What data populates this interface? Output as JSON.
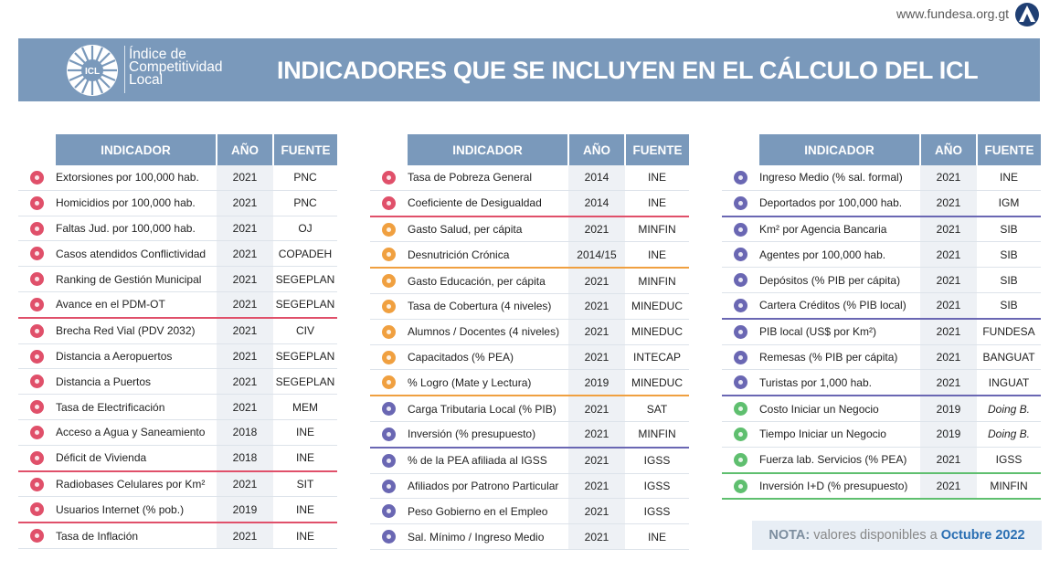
{
  "header": {
    "site_url": "www.fundesa.org.gt",
    "logo_text": "ICL",
    "brand_line1": "Índice de",
    "brand_line2": "Competitividad",
    "brand_line3": "Local",
    "title": "INDICADORES QUE SE INCLUYEN EN EL CÁLCULO DEL ICL"
  },
  "columns": {
    "indicator": "INDICADOR",
    "year": "AÑO",
    "source": "FUENTE"
  },
  "colors": {
    "banner": "#7a99bb",
    "crimson": "#e0506a",
    "orange": "#f0a040",
    "purple": "#6a67b3",
    "green": "#5fbf6f",
    "nota_date": "#2a6fb3"
  },
  "tables": [
    {
      "rows": [
        {
          "icon": "shield-icon",
          "color": "#e0506a",
          "indicator": "Extorsiones por 100,000 hab.",
          "year": "2021",
          "source": "PNC"
        },
        {
          "icon": "shield-icon",
          "color": "#e0506a",
          "indicator": "Homicidios por 100,000 hab.",
          "year": "2021",
          "source": "PNC"
        },
        {
          "icon": "shield-icon",
          "color": "#e0506a",
          "indicator": "Faltas Jud. por 100,000 hab.",
          "year": "2021",
          "source": "OJ"
        },
        {
          "icon": "institution-icon",
          "color": "#e0506a",
          "indicator": "Casos atendidos Conflictividad",
          "year": "2021",
          "source": "COPADEH"
        },
        {
          "icon": "institution-icon",
          "color": "#e0506a",
          "indicator": "Ranking de Gestión Municipal",
          "year": "2021",
          "source": "SEGEPLAN"
        },
        {
          "icon": "institution-icon",
          "color": "#e0506a",
          "indicator": "Avance en el PDM-OT",
          "year": "2021",
          "source": "SEGEPLAN",
          "sep": "#e0506a"
        },
        {
          "icon": "road-icon",
          "color": "#e0506a",
          "indicator": "Brecha Red Vial (PDV 2032)",
          "year": "2021",
          "source": "CIV"
        },
        {
          "icon": "road-icon",
          "color": "#e0506a",
          "indicator": "Distancia a Aeropuertos",
          "year": "2021",
          "source": "SEGEPLAN"
        },
        {
          "icon": "road-icon",
          "color": "#e0506a",
          "indicator": "Distancia a Puertos",
          "year": "2021",
          "source": "SEGEPLAN"
        },
        {
          "icon": "building-icon",
          "color": "#e0506a",
          "indicator": "Tasa de Electrificación",
          "year": "2021",
          "source": "MEM"
        },
        {
          "icon": "building-icon",
          "color": "#e0506a",
          "indicator": "Acceso a Agua y Saneamiento",
          "year": "2018",
          "source": "INE"
        },
        {
          "icon": "building-icon",
          "color": "#e0506a",
          "indicator": "Déficit de Vivienda",
          "year": "2018",
          "source": "INE",
          "sep": "#e0506a"
        },
        {
          "icon": "antenna-icon",
          "color": "#e0506a",
          "indicator": "Radiobases Celulares por Km²",
          "year": "2021",
          "source": "SIT"
        },
        {
          "icon": "antenna-icon",
          "color": "#e0506a",
          "indicator": "Usuarios Internet (% pob.)",
          "year": "2019",
          "source": "INE",
          "sep": "#e0506a"
        },
        {
          "icon": "percent-icon",
          "color": "#e0506a",
          "indicator": "Tasa de Inflación",
          "year": "2021",
          "source": "INE"
        }
      ]
    },
    {
      "rows": [
        {
          "icon": "percent-icon",
          "color": "#e0506a",
          "indicator": "Tasa de Pobreza General",
          "year": "2014",
          "source": "INE"
        },
        {
          "icon": "percent-icon",
          "color": "#e0506a",
          "indicator": "Coeficiente de Desigualdad",
          "year": "2014",
          "source": "INE",
          "sep": "#e0506a"
        },
        {
          "icon": "heart-icon",
          "color": "#f0a040",
          "indicator": "Gasto Salud, per cápita",
          "year": "2021",
          "source": "MINFIN"
        },
        {
          "icon": "heart-icon",
          "color": "#f0a040",
          "indicator": "Desnutrición Crónica",
          "year": "2014/15",
          "source": "INE",
          "sep": "#f0a040"
        },
        {
          "icon": "graduation-icon",
          "color": "#f0a040",
          "indicator": "Gasto Educación, per cápita",
          "year": "2021",
          "source": "MINFIN"
        },
        {
          "icon": "graduation-icon",
          "color": "#f0a040",
          "indicator": "Tasa de Cobertura (4 niveles)",
          "year": "2021",
          "source": "MINEDUC"
        },
        {
          "icon": "graduation-icon",
          "color": "#f0a040",
          "indicator": "Alumnos / Docentes (4 niveles)",
          "year": "2021",
          "source": "MINEDUC"
        },
        {
          "icon": "graduation-icon",
          "color": "#f0a040",
          "indicator": "Capacitados (% PEA)",
          "year": "2021",
          "source": "INTECAP"
        },
        {
          "icon": "graduation-icon",
          "color": "#f0a040",
          "indicator": "% Logro (Mate y Lectura)",
          "year": "2019",
          "source": "MINEDUC",
          "sep": "#f0a040"
        },
        {
          "icon": "money-icon",
          "color": "#6a67b3",
          "indicator": "Carga Tributaria Local (% PIB)",
          "year": "2021",
          "source": "SAT"
        },
        {
          "icon": "money-icon",
          "color": "#6a67b3",
          "indicator": "Inversión (% presupuesto)",
          "year": "2021",
          "source": "MINFIN",
          "sep": "#6a67b3"
        },
        {
          "icon": "people-icon",
          "color": "#6a67b3",
          "indicator": "% de la PEA afiliada al IGSS",
          "year": "2021",
          "source": "IGSS"
        },
        {
          "icon": "people-icon",
          "color": "#6a67b3",
          "indicator": "Afiliados por Patrono Particular",
          "year": "2021",
          "source": "IGSS"
        },
        {
          "icon": "people-icon",
          "color": "#6a67b3",
          "indicator": "Peso Gobierno en el Empleo",
          "year": "2021",
          "source": "IGSS"
        },
        {
          "icon": "people-icon",
          "color": "#6a67b3",
          "indicator": "Sal. Mínimo / Ingreso Medio",
          "year": "2021",
          "source": "INE"
        }
      ]
    },
    {
      "rows": [
        {
          "icon": "people-icon",
          "color": "#6a67b3",
          "indicator": "Ingreso Medio (% sal. formal)",
          "year": "2021",
          "source": "INE"
        },
        {
          "icon": "people-icon",
          "color": "#6a67b3",
          "indicator": "Deportados por 100,000 hab.",
          "year": "2021",
          "source": "IGM",
          "sep": "#6a67b3"
        },
        {
          "icon": "card-icon",
          "color": "#6a67b3",
          "indicator": "Km² por Agencia Bancaria",
          "year": "2021",
          "source": "SIB"
        },
        {
          "icon": "card-icon",
          "color": "#6a67b3",
          "indicator": "Agentes por 100,000 hab.",
          "year": "2021",
          "source": "SIB"
        },
        {
          "icon": "card-icon",
          "color": "#6a67b3",
          "indicator": "Depósitos (% PIB per cápita)",
          "year": "2021",
          "source": "SIB"
        },
        {
          "icon": "card-icon",
          "color": "#6a67b3",
          "indicator": "Cartera Créditos (% PIB local)",
          "year": "2021",
          "source": "SIB",
          "sep": "#6a67b3"
        },
        {
          "icon": "chart-icon",
          "color": "#6a67b3",
          "indicator": "PIB local (US$ por Km²)",
          "year": "2021",
          "source": "FUNDESA"
        },
        {
          "icon": "chart-icon",
          "color": "#6a67b3",
          "indicator": "Remesas (% PIB per cápita)",
          "year": "2021",
          "source": "BANGUAT"
        },
        {
          "icon": "chart-icon",
          "color": "#6a67b3",
          "indicator": "Turistas por 1,000 hab.",
          "year": "2021",
          "source": "INGUAT",
          "sep": "#6a67b3"
        },
        {
          "icon": "store-icon",
          "color": "#5fbf6f",
          "indicator": "Costo Iniciar un Negocio",
          "year": "2019",
          "source": "Doing B.",
          "italic": true
        },
        {
          "icon": "store-icon",
          "color": "#5fbf6f",
          "indicator": "Tiempo Iniciar un Negocio",
          "year": "2019",
          "source": "Doing B.",
          "italic": true
        },
        {
          "icon": "store-icon",
          "color": "#5fbf6f",
          "indicator": "Fuerza lab. Servicios (% PEA)",
          "year": "2021",
          "source": "IGSS",
          "sep": "#5fbf6f"
        },
        {
          "icon": "lightbulb-icon",
          "color": "#5fbf6f",
          "indicator": "Inversión I+D (% presupuesto)",
          "year": "2021",
          "source": "MINFIN",
          "sep": "#5fbf6f"
        }
      ]
    }
  ],
  "note": {
    "label": "NOTA:",
    "text": " valores disponibles a ",
    "date": "Octubre 2022"
  }
}
